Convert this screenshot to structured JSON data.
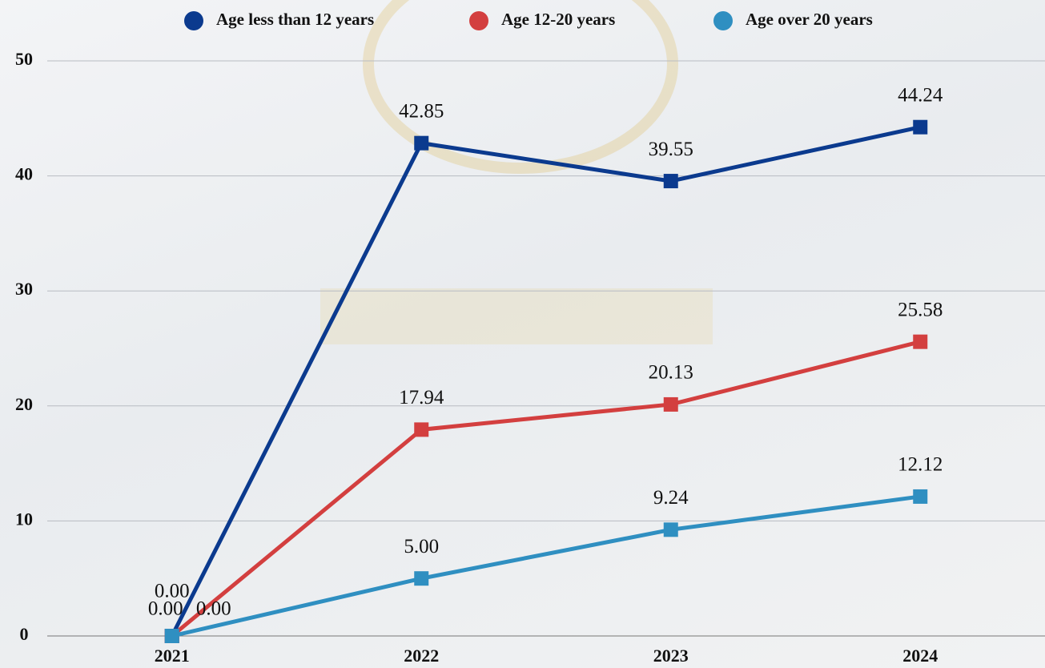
{
  "chart_data": {
    "type": "line",
    "categories": [
      "2021",
      "2022",
      "2023",
      "2024"
    ],
    "series": [
      {
        "name": "Age less than 12 years",
        "color": "#0b3a8e",
        "values": [
          0,
          42.85,
          39.55,
          44.24
        ],
        "value_labels": [
          "0.00",
          "42.85",
          "39.55",
          "44.24"
        ]
      },
      {
        "name": "Age 12-20 years",
        "color": "#d33f3f",
        "values": [
          0,
          17.94,
          20.13,
          25.58
        ],
        "value_labels": [
          "0.00",
          "17.94",
          "20.13",
          "25.58"
        ]
      },
      {
        "name": "Age over 20 years",
        "color": "#2f8fc1",
        "values": [
          0,
          5.0,
          9.24,
          12.12
        ],
        "value_labels": [
          "0.00",
          "5.00",
          "9.24",
          "12.12"
        ]
      }
    ],
    "ylim": [
      0,
      50
    ],
    "yticks": [
      0,
      10,
      20,
      30,
      40,
      50
    ],
    "grid": true,
    "legend": "top"
  }
}
